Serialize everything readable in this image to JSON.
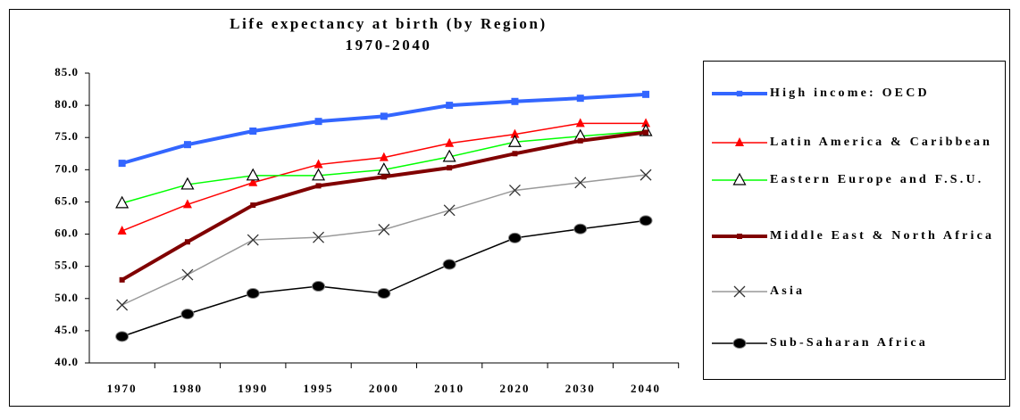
{
  "chart_data": {
    "type": "line",
    "title": "Life expectancy at birth (by Region)",
    "subtitle": "1970-2040",
    "categories": [
      "1970",
      "1980",
      "1990",
      "1995",
      "2000",
      "2010",
      "2020",
      "2030",
      "2040"
    ],
    "ylim": [
      40,
      85
    ],
    "yticks": [
      {
        "value": 40,
        "label": "40.0"
      },
      {
        "value": 45,
        "label": "45.0"
      },
      {
        "value": 50,
        "label": "50.0"
      },
      {
        "value": 55,
        "label": "55.0"
      },
      {
        "value": 60,
        "label": "60.0"
      },
      {
        "value": 65,
        "label": "65.0"
      },
      {
        "value": 70,
        "label": "70.0"
      },
      {
        "value": 75,
        "label": "75.0"
      },
      {
        "value": 80,
        "label": "80.0"
      },
      {
        "value": 85,
        "label": "85.0"
      }
    ],
    "grid": false,
    "legend": "right",
    "series": [
      {
        "name": "High income: OECD",
        "color": "#3366ff",
        "marker": "square",
        "line_width": 4,
        "values": [
          71.0,
          73.9,
          76.0,
          77.5,
          78.3,
          80.0,
          80.6,
          81.1,
          81.7
        ]
      },
      {
        "name": "Latin America & Caribbean",
        "color": "#ff0000",
        "marker": "triangle",
        "line_width": 1.5,
        "values": [
          60.5,
          64.6,
          68.0,
          70.8,
          71.9,
          74.1,
          75.5,
          77.2,
          77.2
        ]
      },
      {
        "name": "Eastern Europe and F.S.U.",
        "color": "#00ff00",
        "marker": "open-triangle",
        "line_width": 1.5,
        "values": [
          64.8,
          67.7,
          69.1,
          69.1,
          70.0,
          72.0,
          74.3,
          75.2,
          76.0
        ]
      },
      {
        "name": "Middle East & North Africa",
        "color": "#800000",
        "marker": "small-square",
        "line_width": 4,
        "values": [
          52.9,
          58.8,
          64.5,
          67.5,
          68.9,
          70.3,
          72.5,
          74.5,
          75.8
        ]
      },
      {
        "name": "Asia",
        "color": "#999999",
        "marker": "x",
        "line_width": 1.5,
        "values": [
          49.0,
          53.7,
          59.1,
          59.5,
          60.7,
          63.7,
          66.8,
          68.0,
          69.2
        ]
      },
      {
        "name": "Sub-Saharan Africa",
        "color": "#000000",
        "marker": "ellipse",
        "line_width": 1.5,
        "values": [
          44.1,
          47.6,
          50.8,
          51.9,
          50.8,
          55.3,
          59.4,
          60.8,
          62.1
        ]
      }
    ]
  }
}
